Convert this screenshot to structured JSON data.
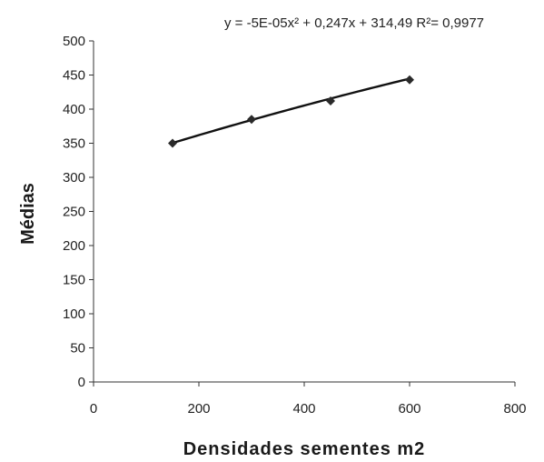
{
  "chart_data": {
    "type": "scatter",
    "title": "",
    "equation": "y = -5E-05x² + 0,247x + 314,49 R²= 0,9977",
    "xlabel": "Densidades sementes m2",
    "ylabel": "Médias",
    "xlim": [
      0,
      800
    ],
    "ylim": [
      0,
      500
    ],
    "x_ticks": [
      0,
      200,
      400,
      600,
      800
    ],
    "y_ticks": [
      0,
      50,
      100,
      150,
      200,
      250,
      300,
      350,
      400,
      450,
      500
    ],
    "series": [
      {
        "x": [
          150,
          300,
          450,
          600
        ],
        "y": [
          350,
          385,
          412,
          443
        ],
        "marker": "diamond",
        "trendline": "polynomial-2"
      }
    ],
    "trendline_coefficients": {
      "a": -5e-05,
      "b": 0.247,
      "c": 314.49
    },
    "grid": false,
    "legend": "none",
    "colors": {
      "marker": "#2a2a2a",
      "line": "#111111",
      "axis": "#333333"
    }
  }
}
